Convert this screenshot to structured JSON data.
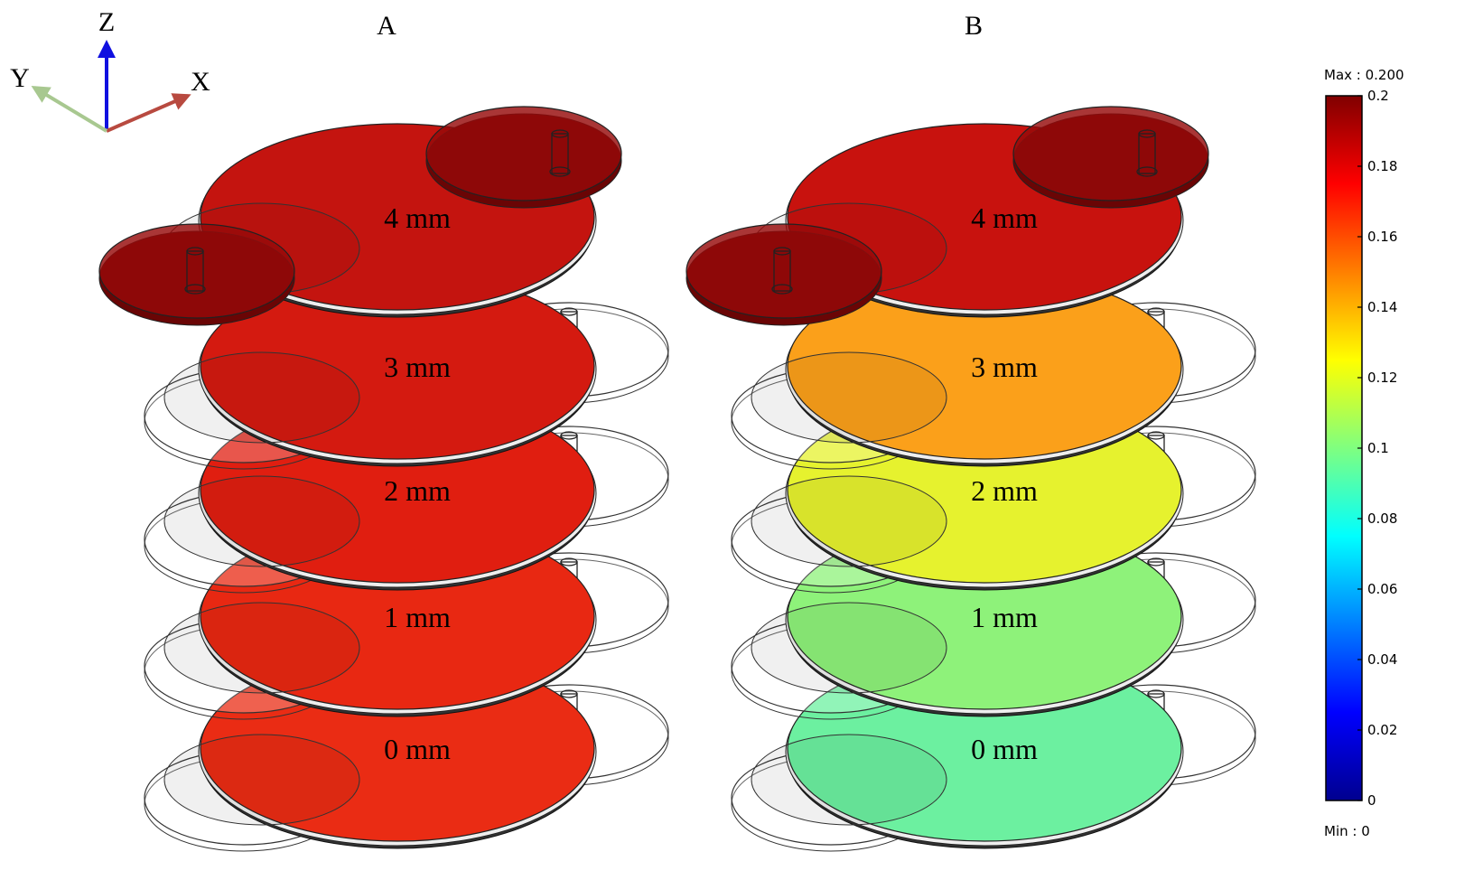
{
  "axes": {
    "z": "Z",
    "y": "Y",
    "x": "X"
  },
  "panels": [
    {
      "label": "A",
      "layers": [
        {
          "label": "4 mm",
          "color": "#c4140f"
        },
        {
          "label": "3 mm",
          "color": "#d41a10"
        },
        {
          "label": "2 mm",
          "color": "#e01e10"
        },
        {
          "label": "1 mm",
          "color": "#e82812"
        },
        {
          "label": "0 mm",
          "color": "#ea2c14"
        }
      ]
    },
    {
      "label": "B",
      "layers": [
        {
          "label": "4 mm",
          "color": "#c8120e"
        },
        {
          "label": "3 mm",
          "color": "#fba01a"
        },
        {
          "label": "2 mm",
          "color": "#e6f22e"
        },
        {
          "label": "1 mm",
          "color": "#8ef27a"
        },
        {
          "label": "0 mm",
          "color": "#6cf0a0"
        }
      ]
    }
  ],
  "colorbar": {
    "max_label": "Max : 0.200",
    "min_label": "Min : 0",
    "range": [
      0,
      0.2
    ],
    "ticks": [
      0,
      0.02,
      0.04,
      0.06,
      0.08,
      0.1,
      0.12,
      0.14,
      0.16,
      0.18,
      0.2
    ]
  }
}
